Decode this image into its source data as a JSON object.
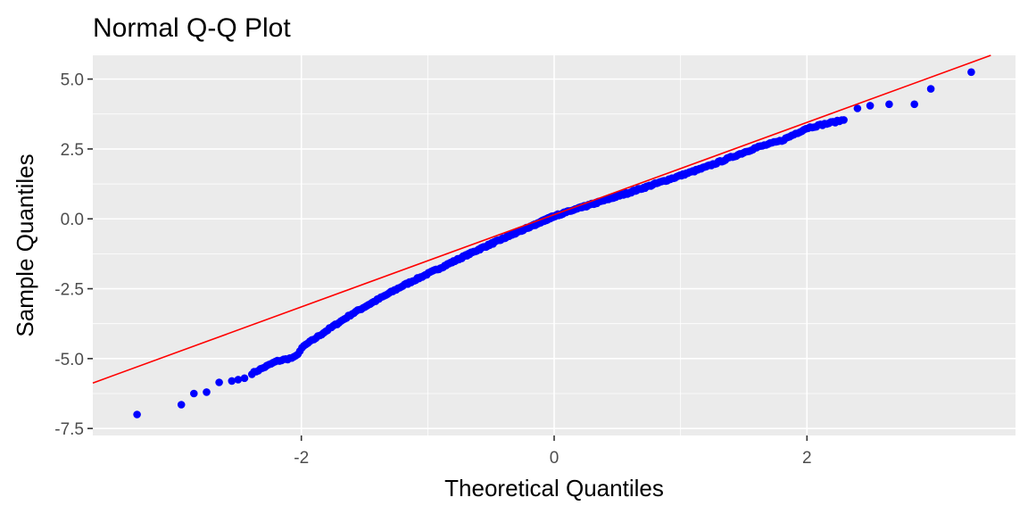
{
  "chart_data": {
    "type": "scatter",
    "title": "Normal Q-Q Plot",
    "xlabel": "Theoretical Quantiles",
    "ylabel": "Sample Quantiles",
    "xlim": [
      -3.65,
      3.65
    ],
    "ylim": [
      -7.75,
      5.85
    ],
    "x_ticks": [
      -2,
      0,
      2
    ],
    "x_tick_labels": [
      "-2",
      "0",
      "2"
    ],
    "y_ticks": [
      -7.5,
      -5.0,
      -2.5,
      0.0,
      2.5,
      5.0
    ],
    "y_tick_labels": [
      "-7.5",
      "-5.0",
      "-2.5",
      "0.0",
      "2.5",
      "5.0"
    ],
    "grid": true,
    "legend": "none",
    "panel_color": "#ebebeb",
    "grid_color": "#ffffff",
    "point_color": "#0000ff",
    "line_color": "#ff0000",
    "reference_line": {
      "slope": 1.65,
      "intercept": 0.15
    },
    "outlier_points": [
      {
        "x": -3.3,
        "y": -7.0
      },
      {
        "x": -2.95,
        "y": -6.65
      },
      {
        "x": -2.85,
        "y": -6.25
      },
      {
        "x": -2.75,
        "y": -6.2
      },
      {
        "x": -2.65,
        "y": -5.85
      },
      {
        "x": -2.55,
        "y": -5.8
      },
      {
        "x": -2.5,
        "y": -5.75
      },
      {
        "x": -2.45,
        "y": -5.7
      },
      {
        "x": 2.4,
        "y": 3.95
      },
      {
        "x": 2.5,
        "y": 4.05
      },
      {
        "x": 2.65,
        "y": 4.1
      },
      {
        "x": 2.85,
        "y": 4.1
      },
      {
        "x": 2.98,
        "y": 4.65
      },
      {
        "x": 3.3,
        "y": 5.25
      }
    ],
    "curve_knots": {
      "x": [
        -2.4,
        -2.2,
        -2.05,
        -1.98,
        -1.8,
        -1.6,
        -1.2,
        -0.6,
        0.0,
        0.6,
        1.2,
        1.6,
        1.8,
        2.0,
        2.3
      ],
      "y": [
        -5.55,
        -5.1,
        -4.95,
        -4.55,
        -4.0,
        -3.4,
        -2.4,
        -1.1,
        0.1,
        0.95,
        1.85,
        2.55,
        2.8,
        3.25,
        3.55
      ]
    },
    "curve_point_count": 440
  }
}
